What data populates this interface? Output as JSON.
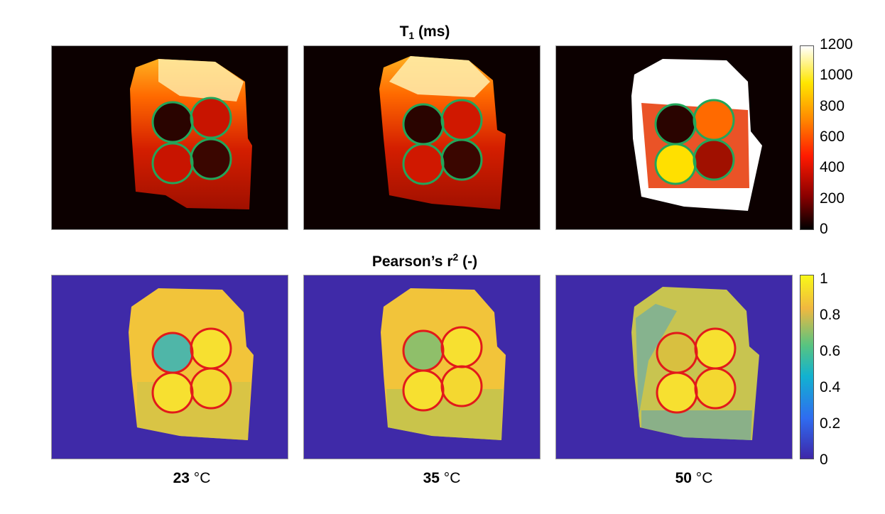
{
  "row1": {
    "title_main": "T",
    "title_sub": "1",
    "title_rest": " (ms)"
  },
  "row2": {
    "title_main": "Pearson’s r",
    "title_sup": "2",
    "title_rest": " (-)"
  },
  "colorbar1": {
    "ticks": [
      "1200",
      "1000",
      "800",
      "600",
      "400",
      "200",
      "0"
    ]
  },
  "colorbar2": {
    "ticks": [
      "1",
      "0.8",
      "0.6",
      "0.4",
      "0.2",
      "0"
    ]
  },
  "temperatures": [
    {
      "value": "23",
      "unit": " °C"
    },
    {
      "value": "35",
      "unit": " °C"
    },
    {
      "value": "50",
      "unit": " °C"
    }
  ],
  "colors": {
    "t1_background": "#0c0000",
    "r2_background": "#3f2aa8",
    "t1_roi": "#22a65a",
    "r2_roi": "#e21a1a"
  }
}
